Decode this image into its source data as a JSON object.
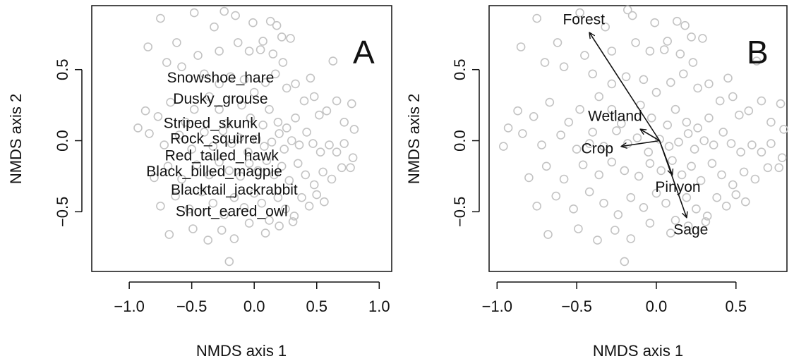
{
  "chart_data": [
    {
      "type": "scatter",
      "panel_label": "A",
      "xlabel": "NMDS axis 1",
      "ylabel": "NMDS axis 2",
      "xlim": [
        -1.3,
        1.1
      ],
      "ylim": [
        -0.92,
        0.95
      ],
      "xticks": [
        -1.0,
        -0.5,
        0.0,
        0.5,
        1.0
      ],
      "yticks": [
        -0.5,
        0.0,
        0.5
      ],
      "grid": false,
      "point_color": "#c3c3c3",
      "points": [
        [
          -0.75,
          0.86
        ],
        [
          -0.48,
          0.9
        ],
        [
          -0.32,
          0.8
        ],
        [
          -0.24,
          0.91
        ],
        [
          -0.15,
          0.88
        ],
        [
          -0.01,
          0.83
        ],
        [
          0.07,
          0.7
        ],
        [
          0.13,
          0.84
        ],
        [
          0.18,
          0.81
        ],
        [
          0.22,
          0.73
        ],
        [
          0.29,
          0.72
        ],
        [
          -0.85,
          0.66
        ],
        [
          -0.62,
          0.69
        ],
        [
          -0.45,
          0.6
        ],
        [
          -0.28,
          0.63
        ],
        [
          -0.13,
          0.69
        ],
        [
          -0.04,
          0.63
        ],
        [
          0.05,
          0.64
        ],
        [
          0.15,
          0.61
        ],
        [
          0.23,
          0.55
        ],
        [
          0.63,
          0.56
        ],
        [
          -0.7,
          0.55
        ],
        [
          -0.58,
          0.52
        ],
        [
          -0.4,
          0.47
        ],
        [
          -0.28,
          0.4
        ],
        [
          -0.19,
          0.45
        ],
        [
          -0.08,
          0.43
        ],
        [
          0.0,
          0.34
        ],
        [
          0.09,
          0.41
        ],
        [
          0.17,
          0.47
        ],
        [
          0.26,
          0.37
        ],
        [
          0.33,
          0.4
        ],
        [
          0.45,
          0.44
        ],
        [
          -0.87,
          0.21
        ],
        [
          -0.77,
          0.17
        ],
        [
          -0.67,
          0.27
        ],
        [
          -0.55,
          0.13
        ],
        [
          -0.48,
          0.22
        ],
        [
          -0.36,
          0.31
        ],
        [
          -0.28,
          0.22
        ],
        [
          -0.22,
          0.12
        ],
        [
          -0.1,
          0.25
        ],
        [
          -0.03,
          0.16
        ],
        [
          0.07,
          0.11
        ],
        [
          0.12,
          0.22
        ],
        [
          0.19,
          0.13
        ],
        [
          0.26,
          0.09
        ],
        [
          0.33,
          0.16
        ],
        [
          0.4,
          0.28
        ],
        [
          0.48,
          0.31
        ],
        [
          0.52,
          0.18
        ],
        [
          0.58,
          0.21
        ],
        [
          0.66,
          0.28
        ],
        [
          0.72,
          0.13
        ],
        [
          0.78,
          0.26
        ],
        [
          0.8,
          0.08
        ],
        [
          -0.93,
          0.09
        ],
        [
          -0.84,
          0.05
        ],
        [
          -0.72,
          -0.03
        ],
        [
          -0.6,
          0.04
        ],
        [
          -0.5,
          -0.06
        ],
        [
          -0.4,
          0.06
        ],
        [
          -0.33,
          -0.04
        ],
        [
          -0.25,
          0.07
        ],
        [
          -0.18,
          -0.02
        ],
        [
          -0.12,
          0.02
        ],
        [
          -0.05,
          -0.08
        ],
        [
          0.02,
          0.01
        ],
        [
          0.08,
          -0.04
        ],
        [
          0.14,
          -0.01
        ],
        [
          0.2,
          0.05
        ],
        [
          0.24,
          -0.06
        ],
        [
          0.3,
          0.0
        ],
        [
          0.36,
          -0.03
        ],
        [
          0.42,
          0.06
        ],
        [
          0.47,
          -0.02
        ],
        [
          0.53,
          -0.08
        ],
        [
          0.6,
          -0.03
        ],
        [
          0.66,
          -0.08
        ],
        [
          0.72,
          -0.02
        ],
        [
          0.79,
          -0.12
        ],
        [
          -0.8,
          -0.26
        ],
        [
          -0.69,
          -0.18
        ],
        [
          -0.58,
          -0.27
        ],
        [
          -0.46,
          -0.17
        ],
        [
          -0.36,
          -0.24
        ],
        [
          -0.28,
          -0.15
        ],
        [
          -0.2,
          -0.21
        ],
        [
          -0.11,
          -0.25
        ],
        [
          -0.04,
          -0.16
        ],
        [
          0.03,
          -0.21
        ],
        [
          0.1,
          -0.14
        ],
        [
          0.16,
          -0.24
        ],
        [
          0.22,
          -0.18
        ],
        [
          0.28,
          -0.28
        ],
        [
          0.35,
          -0.16
        ],
        [
          0.41,
          -0.24
        ],
        [
          0.48,
          -0.31
        ],
        [
          0.55,
          -0.22
        ],
        [
          0.62,
          -0.27
        ],
        [
          0.7,
          -0.19
        ],
        [
          0.77,
          -0.19
        ],
        [
          -0.75,
          -0.46
        ],
        [
          -0.63,
          -0.39
        ],
        [
          -0.52,
          -0.48
        ],
        [
          -0.42,
          -0.36
        ],
        [
          -0.33,
          -0.44
        ],
        [
          -0.24,
          -0.52
        ],
        [
          -0.16,
          -0.4
        ],
        [
          -0.08,
          -0.47
        ],
        [
          0.0,
          -0.37
        ],
        [
          0.06,
          -0.44
        ],
        [
          0.12,
          -0.56
        ],
        [
          0.19,
          -0.4
        ],
        [
          0.25,
          -0.48
        ],
        [
          0.32,
          -0.53
        ],
        [
          0.38,
          -0.4
        ],
        [
          0.44,
          -0.46
        ],
        [
          0.5,
          -0.38
        ],
        [
          0.56,
          -0.43
        ],
        [
          -0.68,
          -0.66
        ],
        [
          -0.49,
          -0.62
        ],
        [
          -0.37,
          -0.7
        ],
        [
          -0.26,
          -0.63
        ],
        [
          -0.16,
          -0.69
        ],
        [
          -0.04,
          -0.58
        ],
        [
          0.09,
          -0.65
        ],
        [
          0.2,
          -0.6
        ],
        [
          0.31,
          -0.57
        ],
        [
          -0.2,
          -0.85
        ]
      ],
      "species_labels": [
        {
          "label": "Snowshoe_hare",
          "x": -0.27,
          "y": 0.45
        },
        {
          "label": "Dusky_grouse",
          "x": -0.27,
          "y": 0.3
        },
        {
          "label": "Striped_skunk",
          "x": -0.35,
          "y": 0.13
        },
        {
          "label": "Rock_squirrel",
          "x": -0.31,
          "y": 0.02
        },
        {
          "label": "Red_tailed_hawk",
          "x": -0.26,
          "y": -0.1
        },
        {
          "label": "Black_billed_magpie",
          "x": -0.32,
          "y": -0.21
        },
        {
          "label": "Blacktail_jackrabbit",
          "x": -0.16,
          "y": -0.34
        },
        {
          "label": "Short_eared_owl",
          "x": -0.18,
          "y": -0.49
        }
      ]
    },
    {
      "type": "scatter",
      "panel_label": "B",
      "xlabel": "NMDS axis 1",
      "ylabel": "NMDS axis 2",
      "xlim": [
        -1.05,
        0.82
      ],
      "ylim": [
        -0.92,
        0.95
      ],
      "xticks": [
        -1.0,
        -0.5,
        0.0,
        0.5
      ],
      "yticks": [
        -0.5,
        0.0,
        0.5
      ],
      "grid": false,
      "point_color": "#c3c3c3",
      "points": [
        [
          -0.75,
          0.86
        ],
        [
          -0.48,
          0.9
        ],
        [
          -0.32,
          0.8
        ],
        [
          -0.18,
          0.92
        ],
        [
          -0.15,
          0.88
        ],
        [
          -0.01,
          0.83
        ],
        [
          0.07,
          0.7
        ],
        [
          0.13,
          0.84
        ],
        [
          0.18,
          0.81
        ],
        [
          0.22,
          0.73
        ],
        [
          0.29,
          0.72
        ],
        [
          -0.85,
          0.66
        ],
        [
          -0.62,
          0.69
        ],
        [
          -0.45,
          0.6
        ],
        [
          -0.28,
          0.63
        ],
        [
          -0.13,
          0.69
        ],
        [
          -0.04,
          0.63
        ],
        [
          0.05,
          0.64
        ],
        [
          0.15,
          0.61
        ],
        [
          0.23,
          0.55
        ],
        [
          0.63,
          0.56
        ],
        [
          -0.7,
          0.55
        ],
        [
          -0.58,
          0.52
        ],
        [
          -0.4,
          0.47
        ],
        [
          -0.28,
          0.4
        ],
        [
          -0.19,
          0.45
        ],
        [
          -0.08,
          0.43
        ],
        [
          0.0,
          0.34
        ],
        [
          0.09,
          0.41
        ],
        [
          0.17,
          0.47
        ],
        [
          0.26,
          0.37
        ],
        [
          0.33,
          0.4
        ],
        [
          0.45,
          0.44
        ],
        [
          -0.87,
          0.21
        ],
        [
          -0.77,
          0.17
        ],
        [
          -0.67,
          0.27
        ],
        [
          -0.55,
          0.13
        ],
        [
          -0.48,
          0.22
        ],
        [
          -0.36,
          0.31
        ],
        [
          -0.28,
          0.22
        ],
        [
          -0.22,
          0.12
        ],
        [
          -0.1,
          0.25
        ],
        [
          -0.03,
          0.16
        ],
        [
          0.07,
          0.11
        ],
        [
          0.12,
          0.22
        ],
        [
          0.19,
          0.13
        ],
        [
          0.26,
          0.09
        ],
        [
          0.33,
          0.16
        ],
        [
          0.4,
          0.28
        ],
        [
          0.48,
          0.31
        ],
        [
          0.52,
          0.18
        ],
        [
          0.58,
          0.21
        ],
        [
          0.66,
          0.28
        ],
        [
          0.72,
          0.13
        ],
        [
          0.78,
          0.26
        ],
        [
          0.8,
          0.08
        ],
        [
          -0.93,
          0.09
        ],
        [
          -0.84,
          0.05
        ],
        [
          -0.72,
          -0.03
        ],
        [
          -0.6,
          0.04
        ],
        [
          -0.5,
          -0.06
        ],
        [
          -0.4,
          0.06
        ],
        [
          -0.33,
          -0.04
        ],
        [
          -0.25,
          0.07
        ],
        [
          -0.18,
          -0.02
        ],
        [
          -0.12,
          0.02
        ],
        [
          -0.05,
          -0.08
        ],
        [
          0.02,
          0.01
        ],
        [
          0.08,
          -0.04
        ],
        [
          0.14,
          -0.01
        ],
        [
          0.2,
          0.05
        ],
        [
          0.24,
          -0.06
        ],
        [
          0.3,
          0.0
        ],
        [
          0.36,
          -0.03
        ],
        [
          0.42,
          0.06
        ],
        [
          0.47,
          -0.02
        ],
        [
          0.53,
          -0.08
        ],
        [
          0.6,
          -0.03
        ],
        [
          0.66,
          -0.08
        ],
        [
          0.72,
          -0.02
        ],
        [
          0.79,
          -0.12
        ],
        [
          -0.8,
          -0.26
        ],
        [
          -0.69,
          -0.18
        ],
        [
          -0.58,
          -0.27
        ],
        [
          -0.46,
          -0.17
        ],
        [
          -0.36,
          -0.24
        ],
        [
          -0.28,
          -0.15
        ],
        [
          -0.2,
          -0.21
        ],
        [
          -0.11,
          -0.25
        ],
        [
          -0.04,
          -0.16
        ],
        [
          0.03,
          -0.21
        ],
        [
          0.1,
          -0.14
        ],
        [
          0.16,
          -0.24
        ],
        [
          0.22,
          -0.18
        ],
        [
          0.28,
          -0.28
        ],
        [
          0.35,
          -0.16
        ],
        [
          0.41,
          -0.24
        ],
        [
          0.48,
          -0.31
        ],
        [
          0.55,
          -0.22
        ],
        [
          0.62,
          -0.27
        ],
        [
          0.7,
          -0.19
        ],
        [
          0.77,
          -0.19
        ],
        [
          -0.75,
          -0.46
        ],
        [
          -0.63,
          -0.39
        ],
        [
          -0.52,
          -0.48
        ],
        [
          -0.42,
          -0.36
        ],
        [
          -0.33,
          -0.44
        ],
        [
          -0.24,
          -0.52
        ],
        [
          -0.16,
          -0.4
        ],
        [
          -0.08,
          -0.47
        ],
        [
          0.0,
          -0.37
        ],
        [
          0.06,
          -0.44
        ],
        [
          0.12,
          -0.56
        ],
        [
          0.19,
          -0.4
        ],
        [
          0.25,
          -0.48
        ],
        [
          0.32,
          -0.53
        ],
        [
          0.38,
          -0.4
        ],
        [
          0.44,
          -0.46
        ],
        [
          0.5,
          -0.38
        ],
        [
          0.56,
          -0.43
        ],
        [
          -0.68,
          -0.66
        ],
        [
          -0.49,
          -0.62
        ],
        [
          -0.37,
          -0.7
        ],
        [
          -0.26,
          -0.63
        ],
        [
          -0.16,
          -0.69
        ],
        [
          -0.04,
          -0.58
        ],
        [
          0.09,
          -0.65
        ],
        [
          0.2,
          -0.6
        ],
        [
          0.31,
          -0.57
        ],
        [
          -0.2,
          -0.85
        ],
        [
          -0.96,
          -0.04
        ],
        [
          -0.42,
          -0.02
        ]
      ],
      "vectors": [
        {
          "label": "Forest",
          "x": -0.42,
          "y": 0.76
        },
        {
          "label": "Wetland",
          "x": -0.1,
          "y": 0.08
        },
        {
          "label": "Crop",
          "x": -0.22,
          "y": -0.04
        },
        {
          "label": "Pinyon",
          "x": 0.1,
          "y": -0.24
        },
        {
          "label": "Sage",
          "x": 0.19,
          "y": -0.54
        }
      ],
      "vector_origin": [
        0.02,
        0.0
      ]
    }
  ]
}
